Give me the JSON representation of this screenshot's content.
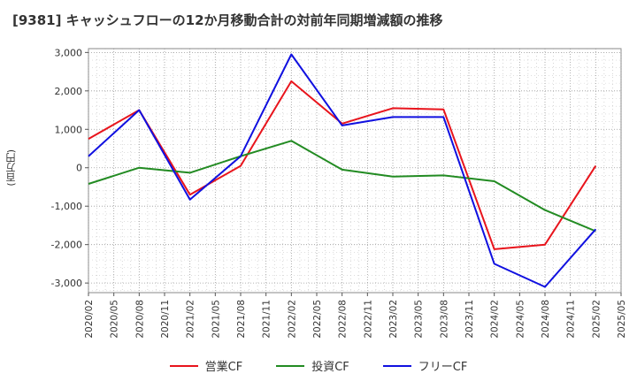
{
  "chart_data": {
    "type": "line",
    "title": "[9381]  キャッシュフローの12か月移動合計の対前年同期増減額の推移",
    "ylabel": "(百万円)",
    "xlabel": "",
    "ylim": [
      -3250,
      3100
    ],
    "yticks": [
      3000,
      2000,
      1000,
      0,
      -1000,
      -2000,
      -3000
    ],
    "ytick_labels": [
      "3,000",
      "2,000",
      "1,000",
      "0",
      "-1,000",
      "-2,000",
      "-3,000"
    ],
    "x_tick_labels": [
      "2020/02",
      "2020/05",
      "2020/08",
      "2020/11",
      "2021/02",
      "2021/05",
      "2021/08",
      "2021/11",
      "2022/02",
      "2022/05",
      "2022/08",
      "2022/11",
      "2023/02",
      "2023/05",
      "2023/08",
      "2023/11",
      "2024/02",
      "2024/05",
      "2024/08",
      "2024/11",
      "2025/02",
      "2025/05"
    ],
    "x": [
      "2020/02",
      "2020/08",
      "2021/02",
      "2021/08",
      "2022/02",
      "2022/08",
      "2023/02",
      "2023/08",
      "2024/02",
      "2024/08",
      "2025/02"
    ],
    "grid": true,
    "legend_position": "bottom",
    "series": [
      {
        "name": "営業CF",
        "color": "#e8141c",
        "values": [
          750,
          1500,
          -700,
          50,
          2250,
          1150,
          1550,
          1520,
          -2120,
          -2000,
          50
        ]
      },
      {
        "name": "投資CF",
        "color": "#228b22",
        "values": [
          -420,
          0,
          -130,
          300,
          700,
          -50,
          -230,
          -200,
          -350,
          -1100,
          -1650
        ]
      },
      {
        "name": "フリーCF",
        "color": "#1010e0",
        "values": [
          300,
          1500,
          -830,
          300,
          2950,
          1100,
          1320,
          1320,
          -2500,
          -3100,
          -1600
        ]
      }
    ]
  }
}
